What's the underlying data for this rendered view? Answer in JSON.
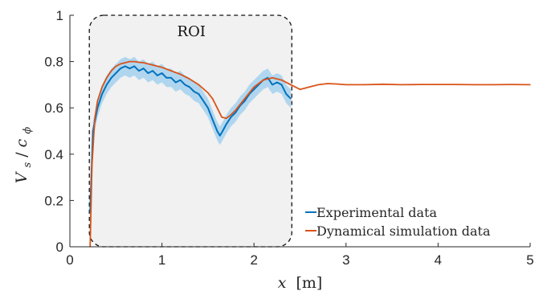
{
  "chart_data": {
    "type": "line",
    "xlabel": "x",
    "xlabel_unit": "[m]",
    "ylabel_main": "V",
    "ylabel_sub1": "s",
    "ylabel_denom": "c",
    "ylabel_sub2": "ϕ",
    "xlim": [
      0,
      5
    ],
    "ylim": [
      0,
      1
    ],
    "xticks": [
      0,
      1,
      2,
      3,
      4,
      5
    ],
    "yticks": [
      0,
      0.2,
      0.4,
      0.6,
      0.8,
      1
    ],
    "xtick_labels": [
      "0",
      "1",
      "2",
      "3",
      "4",
      "5"
    ],
    "ytick_labels": [
      "0",
      "0.2",
      "0.4",
      "0.6",
      "0.8",
      "1"
    ],
    "grid": false,
    "legend_position": "bottom-right",
    "annotation": {
      "text": "ROI",
      "x_range": [
        0.22,
        2.42
      ],
      "y_range": [
        0,
        1
      ]
    },
    "series": [
      {
        "name": "Experimental data",
        "color": "#0072BD",
        "band_color": "#A9D3EE",
        "x": [
          0.22,
          0.25,
          0.3,
          0.35,
          0.4,
          0.45,
          0.5,
          0.55,
          0.6,
          0.65,
          0.7,
          0.75,
          0.8,
          0.85,
          0.9,
          0.95,
          1.0,
          1.05,
          1.1,
          1.15,
          1.2,
          1.25,
          1.3,
          1.35,
          1.4,
          1.45,
          1.5,
          1.55,
          1.6,
          1.63,
          1.66,
          1.7,
          1.75,
          1.8,
          1.85,
          1.9,
          1.95,
          2.0,
          2.05,
          2.1,
          2.15,
          2.2,
          2.25,
          2.3,
          2.35,
          2.4
        ],
        "y": [
          0.15,
          0.5,
          0.6,
          0.66,
          0.7,
          0.73,
          0.75,
          0.77,
          0.78,
          0.77,
          0.78,
          0.76,
          0.77,
          0.75,
          0.76,
          0.74,
          0.75,
          0.73,
          0.73,
          0.71,
          0.72,
          0.7,
          0.69,
          0.67,
          0.66,
          0.63,
          0.6,
          0.55,
          0.5,
          0.48,
          0.5,
          0.53,
          0.56,
          0.58,
          0.61,
          0.63,
          0.66,
          0.68,
          0.7,
          0.72,
          0.73,
          0.7,
          0.71,
          0.7,
          0.66,
          0.64
        ],
        "band_half_width": 0.04
      },
      {
        "name": "Dynamical simulation data",
        "color": "#D95319",
        "x": [
          0.22,
          0.24,
          0.27,
          0.3,
          0.35,
          0.4,
          0.45,
          0.5,
          0.55,
          0.6,
          0.65,
          0.7,
          0.75,
          0.8,
          0.9,
          1.0,
          1.1,
          1.2,
          1.3,
          1.4,
          1.5,
          1.55,
          1.6,
          1.65,
          1.7,
          1.75,
          1.8,
          1.9,
          2.0,
          2.1,
          2.2,
          2.3,
          2.4,
          2.5,
          2.6,
          2.7,
          2.8,
          2.9,
          3.0,
          3.2,
          3.4,
          3.6,
          3.8,
          4.0,
          4.2,
          4.4,
          4.6,
          4.8,
          5.0
        ],
        "y": [
          0.0,
          0.35,
          0.55,
          0.63,
          0.69,
          0.73,
          0.76,
          0.78,
          0.79,
          0.795,
          0.8,
          0.8,
          0.797,
          0.795,
          0.785,
          0.775,
          0.76,
          0.745,
          0.725,
          0.7,
          0.665,
          0.64,
          0.6,
          0.56,
          0.555,
          0.57,
          0.59,
          0.64,
          0.69,
          0.72,
          0.73,
          0.72,
          0.7,
          0.68,
          0.69,
          0.7,
          0.705,
          0.703,
          0.7,
          0.7,
          0.702,
          0.7,
          0.701,
          0.701,
          0.701,
          0.7,
          0.7,
          0.701,
          0.7
        ]
      }
    ]
  }
}
